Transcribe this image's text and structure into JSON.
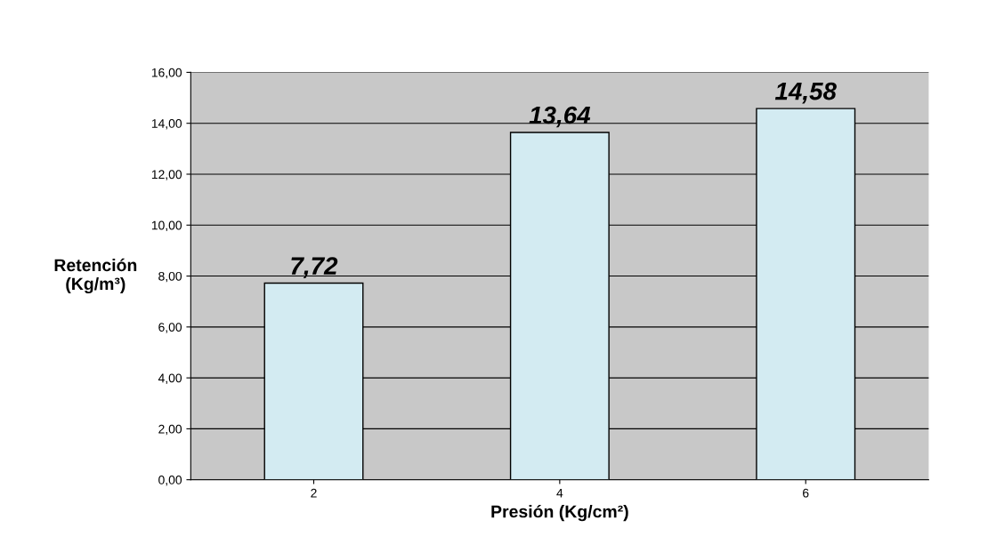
{
  "chart_data": {
    "type": "bar",
    "categories": [
      "2",
      "4",
      "6"
    ],
    "values": [
      7.72,
      13.64,
      14.58
    ],
    "color": "#d3ebf2",
    "value_labels": [
      "7,72",
      "13,64",
      "14,58"
    ],
    "xlabel": "Presión (Kg/cm²)",
    "ylabel": "Retención\n(Kg/m³)",
    "ylim": [
      0,
      16
    ],
    "yticks": [
      {
        "value": 0,
        "label": "0,00"
      },
      {
        "value": 2,
        "label": "2,00"
      },
      {
        "value": 4,
        "label": "4,00"
      },
      {
        "value": 6,
        "label": "6,00"
      },
      {
        "value": 8,
        "label": "8,00"
      },
      {
        "value": 10,
        "label": "10,00"
      },
      {
        "value": 12,
        "label": "12,00"
      },
      {
        "value": 14,
        "label": "14,00"
      },
      {
        "value": 16,
        "label": "16,00"
      }
    ],
    "grid": "y"
  }
}
